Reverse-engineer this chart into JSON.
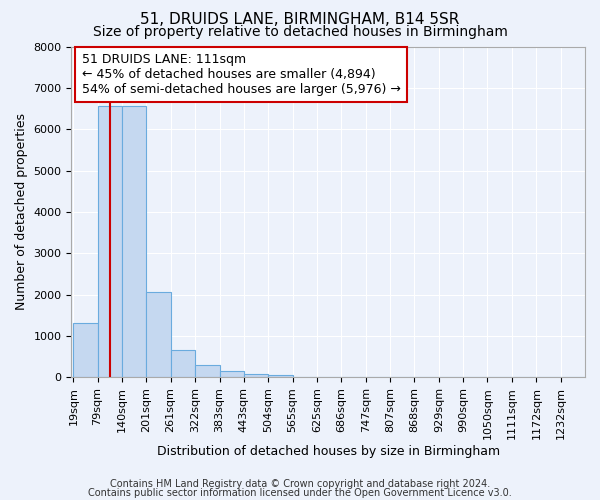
{
  "title": "51, DRUIDS LANE, BIRMINGHAM, B14 5SR",
  "subtitle": "Size of property relative to detached houses in Birmingham",
  "xlabel": "Distribution of detached houses by size in Birmingham",
  "ylabel": "Number of detached properties",
  "bin_labels": [
    "19sqm",
    "79sqm",
    "140sqm",
    "201sqm",
    "261sqm",
    "322sqm",
    "383sqm",
    "443sqm",
    "504sqm",
    "565sqm",
    "625sqm",
    "686sqm",
    "747sqm",
    "807sqm",
    "868sqm",
    "929sqm",
    "990sqm",
    "1050sqm",
    "1111sqm",
    "1172sqm",
    "1232sqm"
  ],
  "bin_edges": [
    19,
    79,
    140,
    201,
    261,
    322,
    383,
    443,
    504,
    565,
    625,
    686,
    747,
    807,
    868,
    929,
    990,
    1050,
    1111,
    1172,
    1232,
    1293
  ],
  "bar_heights": [
    1300,
    6550,
    6550,
    2050,
    650,
    290,
    140,
    80,
    55,
    10,
    10,
    0,
    0,
    0,
    0,
    0,
    0,
    0,
    0,
    0,
    0
  ],
  "bar_color": "#c5d8f0",
  "bar_edge_color": "#6aabde",
  "property_size": 111,
  "property_line_color": "#cc0000",
  "annotation_line1": "51 DRUIDS LANE: 111sqm",
  "annotation_line2": "← 45% of detached houses are smaller (4,894)",
  "annotation_line3": "54% of semi-detached houses are larger (5,976) →",
  "annotation_box_color": "#ffffff",
  "annotation_box_edge": "#cc0000",
  "ylim": [
    0,
    8000
  ],
  "yticks": [
    0,
    1000,
    2000,
    3000,
    4000,
    5000,
    6000,
    7000,
    8000
  ],
  "footer1": "Contains HM Land Registry data © Crown copyright and database right 2024.",
  "footer2": "Contains public sector information licensed under the Open Government Licence v3.0.",
  "background_color": "#edf2fb",
  "grid_color": "#ffffff",
  "title_fontsize": 11,
  "subtitle_fontsize": 10,
  "axis_label_fontsize": 9,
  "tick_fontsize": 8,
  "annotation_fontsize": 9,
  "footer_fontsize": 7
}
